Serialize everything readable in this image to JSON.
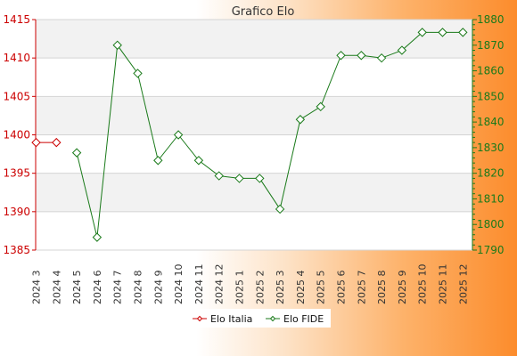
{
  "chart_data": {
    "type": "line",
    "title": "Grafico Elo",
    "categories": [
      "2024 3",
      "2024 4",
      "2024 5",
      "2024 6",
      "2024 7",
      "2024 8",
      "2024 9",
      "2024 10",
      "2024 11",
      "2024 12",
      "2025 1",
      "2025 2",
      "2025 3",
      "2025 4",
      "2025 5",
      "2025 6",
      "2025 7",
      "2025 8",
      "2025 9",
      "2025 10",
      "2025 11",
      "2025 12"
    ],
    "left_axis": {
      "min": 1385,
      "max": 1415,
      "ticks": [
        1385,
        1390,
        1395,
        1400,
        1405,
        1410,
        1415
      ],
      "color": "#cc0000"
    },
    "right_axis": {
      "min": 1790,
      "max": 1880,
      "ticks": [
        1790,
        1800,
        1810,
        1820,
        1830,
        1840,
        1850,
        1860,
        1870,
        1880
      ],
      "color": "#1a7a1a"
    },
    "series": [
      {
        "name": "Elo Italia",
        "axis": "left",
        "color": "#cc0000",
        "values": [
          1399,
          1399,
          null,
          null,
          null,
          null,
          null,
          null,
          null,
          null,
          null,
          null,
          null,
          null,
          null,
          null,
          null,
          null,
          null,
          null,
          null,
          null
        ]
      },
      {
        "name": "Elo FIDE",
        "axis": "right",
        "color": "#1a7a1a",
        "values": [
          null,
          null,
          1828,
          1795,
          1870,
          1859,
          1825,
          1835,
          1825,
          1819,
          1818,
          1818,
          1806,
          1841,
          1846,
          1866,
          1866,
          1865,
          1868,
          1875,
          1875,
          1875
        ]
      }
    ],
    "grid": true,
    "legend": "bottom-center"
  }
}
